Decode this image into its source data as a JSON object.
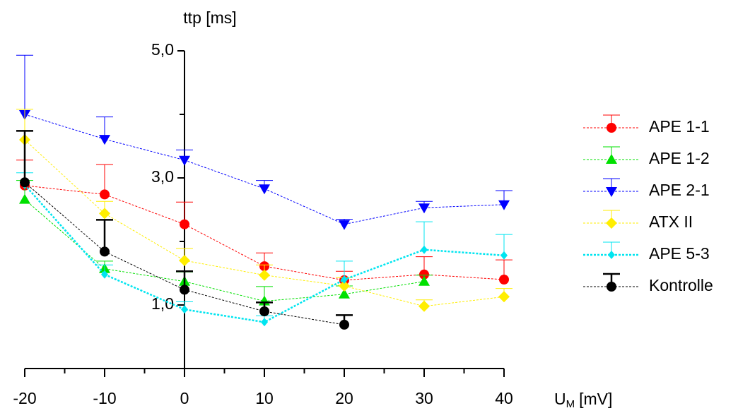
{
  "chart_data": {
    "type": "line",
    "y_label": "ttp [ms]",
    "x_label": "U",
    "x_label_sub": "M",
    "x_label_unit": "[mV]",
    "x": [
      -20,
      -10,
      0,
      10,
      20,
      30,
      40
    ],
    "xlim": [
      -20,
      40
    ],
    "xticks": [
      -20,
      -10,
      0,
      10,
      20,
      30,
      40
    ],
    "xminorticks": [
      -15,
      -5,
      5,
      15,
      25,
      35
    ],
    "ylim": [
      0,
      5
    ],
    "yticks": [
      {
        "value": 1,
        "label": "1,0"
      },
      {
        "value": 3,
        "label": "3,0"
      },
      {
        "value": 5,
        "label": "5,0"
      }
    ],
    "yminorticks": [
      2,
      4
    ],
    "legend": "right",
    "series": [
      {
        "name": "APE 1-1",
        "color": "#ff0000",
        "marker": "circle",
        "values": [
          2.88,
          2.74,
          2.27,
          1.61,
          1.39,
          1.48,
          1.4
        ],
        "errors": [
          0.4,
          0.47,
          0.35,
          0.21,
          0.14,
          0.28,
          0.31
        ]
      },
      {
        "name": "APE 1-2",
        "color": "#00e000",
        "marker": "triangle-up",
        "values": [
          2.66,
          1.57,
          1.37,
          1.06,
          1.17,
          1.37,
          null
        ],
        "errors": [
          0.3,
          0.12,
          0.15,
          0.23,
          0.13,
          0.1,
          null
        ]
      },
      {
        "name": "APE 2-1",
        "color": "#0000ff",
        "marker": "triangle-down",
        "values": [
          4.0,
          3.61,
          3.28,
          2.83,
          2.27,
          2.53,
          2.58
        ],
        "errors": [
          0.93,
          0.35,
          0.16,
          0.13,
          0.08,
          0.1,
          0.22
        ]
      },
      {
        "name": "ATX II",
        "color": "#ffee00",
        "marker": "diamond",
        "values": [
          3.6,
          2.44,
          1.7,
          1.47,
          1.3,
          0.98,
          1.13
        ],
        "errors": [
          0.48,
          0.19,
          0.19,
          0.16,
          0.13,
          0.1,
          0.13
        ]
      },
      {
        "name": "APE 5-3",
        "color": "#00e5f0",
        "marker": "small-diamond",
        "values": [
          2.89,
          1.48,
          0.93,
          0.73,
          1.4,
          1.87,
          1.78
        ],
        "errors": [
          0.19,
          0.15,
          0.12,
          0.1,
          0.29,
          0.44,
          0.33
        ]
      },
      {
        "name": "Kontrolle",
        "color": "#000000",
        "marker": "circle",
        "values": [
          2.93,
          1.84,
          1.24,
          0.9,
          0.69,
          null,
          null
        ],
        "errors": [
          0.81,
          0.5,
          0.29,
          0.14,
          0.15,
          null,
          null
        ]
      }
    ]
  }
}
